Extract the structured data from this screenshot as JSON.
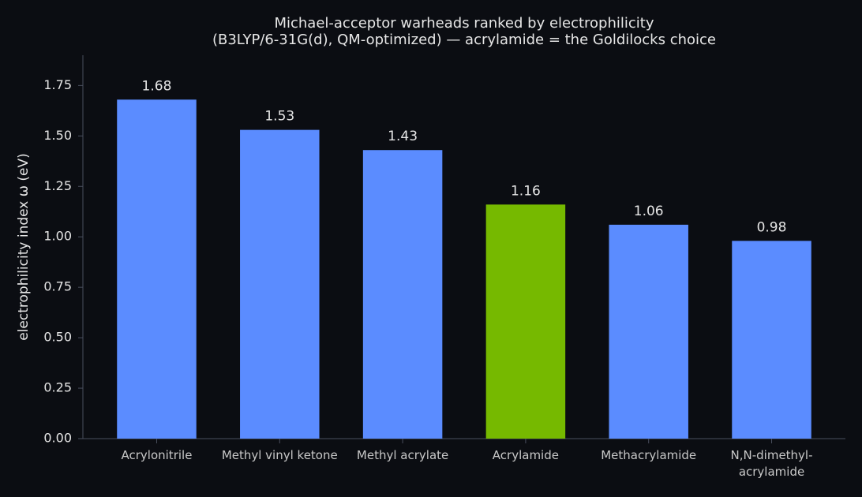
{
  "chart_data": {
    "type": "bar",
    "title": "Michael-acceptor warheads ranked by electrophilicity",
    "subtitle": "(B3LYP/6-31G(d), QM-optimized) — acrylamide = the Goldilocks choice",
    "y_label": "electrophilicity index  ω  (eV)",
    "categories": [
      "Acrylonitrile",
      "Methyl vinyl ketone",
      "Methyl acrylate",
      "Acrylamide",
      "Methacrylamide",
      "N,N-dimethyl-\nacrylamide"
    ],
    "values": [
      1.68,
      1.53,
      1.43,
      1.16,
      1.06,
      0.98
    ],
    "colors": [
      "#5b8cff",
      "#5b8cff",
      "#5b8cff",
      "#76b900",
      "#5b8cff",
      "#5b8cff"
    ],
    "ylim": [
      0,
      1.9
    ],
    "yticks": [
      {
        "value": 0,
        "label": "0.00"
      },
      {
        "value": 0.25,
        "label": "0.25"
      },
      {
        "value": 0.5,
        "label": "0.50"
      },
      {
        "value": 0.75,
        "label": "0.75"
      },
      {
        "value": 1,
        "label": "1.00"
      },
      {
        "value": 1.25,
        "label": "1.25"
      },
      {
        "value": 1.5,
        "label": "1.50"
      },
      {
        "value": 1.75,
        "label": "1.75"
      }
    ],
    "grid": false
  }
}
